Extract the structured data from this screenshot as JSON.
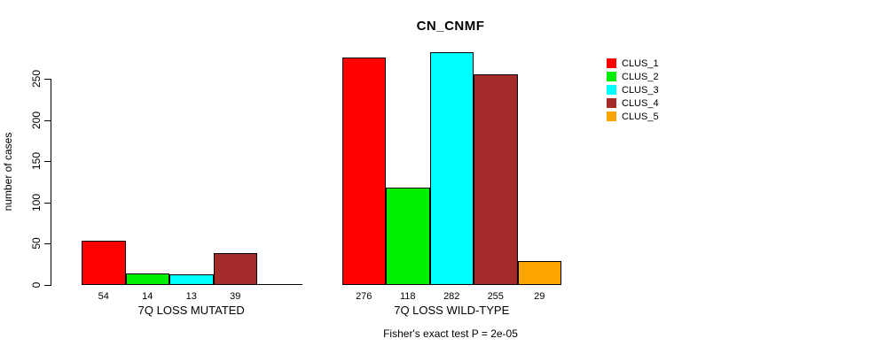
{
  "chart_data": {
    "type": "bar",
    "title": "CN_CNMF",
    "ylabel": "number of cases",
    "xlabel": "",
    "ylim": [
      0,
      250
    ],
    "yticks": [
      0,
      50,
      100,
      150,
      200,
      250
    ],
    "grid": false,
    "legend_position": "right",
    "legend": [
      {
        "label": "CLUS_1",
        "color": "#FF0000"
      },
      {
        "label": "CLUS_2",
        "color": "#00EE00"
      },
      {
        "label": "CLUS_3",
        "color": "#00FFFF"
      },
      {
        "label": "CLUS_4",
        "color": "#A52A2A"
      },
      {
        "label": "CLUS_5",
        "color": "#FFA500"
      }
    ],
    "groups": [
      {
        "label": "7Q LOSS MUTATED",
        "values": [
          54,
          14,
          13,
          39,
          0
        ],
        "value_labels": [
          "54",
          "14",
          "13",
          "39",
          ""
        ]
      },
      {
        "label": "7Q LOSS WILD-TYPE",
        "values": [
          276,
          118,
          282,
          255,
          29
        ],
        "value_labels": [
          "276",
          "118",
          "282",
          "255",
          "29"
        ]
      }
    ],
    "annotation": "Fisher's exact test P = 2e-05"
  }
}
